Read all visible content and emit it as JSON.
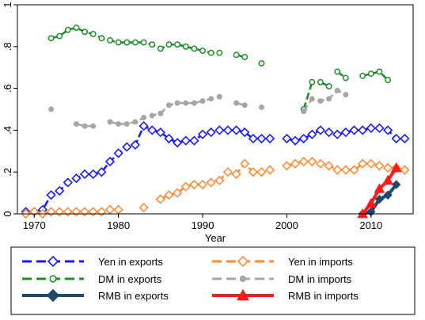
{
  "chart_data": {
    "type": "line",
    "xlabel": "Year",
    "ylabel": "",
    "xlim": [
      1968,
      2015
    ],
    "ylim": [
      0,
      1
    ],
    "x_ticks": [
      1970,
      1980,
      1990,
      2000,
      2010
    ],
    "y_ticks": [
      0,
      0.2,
      0.4,
      0.6,
      0.8,
      1
    ],
    "y_tick_labels": [
      "0",
      ".2",
      ".4",
      ".6",
      ".8",
      "1"
    ],
    "grid": false,
    "legend_position": "bottom",
    "series": [
      {
        "name": "Yen in exports",
        "color": "#1a1aff",
        "marker": "diamond-open",
        "dashed": true,
        "points": [
          [
            1969,
            0.01
          ],
          [
            1970,
            0.01
          ],
          [
            1971,
            0.02
          ],
          [
            1972,
            0.09
          ],
          [
            1973,
            0.11
          ],
          [
            1974,
            0.15
          ],
          [
            1975,
            0.17
          ],
          [
            1976,
            0.19
          ],
          [
            1977,
            0.19
          ],
          [
            1978,
            0.2
          ],
          [
            1979,
            0.25
          ],
          [
            1980,
            0.29
          ],
          [
            1981,
            0.32
          ],
          [
            1982,
            0.33
          ],
          [
            1983,
            0.42
          ],
          [
            1984,
            0.4
          ],
          [
            1985,
            0.39
          ],
          [
            1986,
            0.36
          ],
          [
            1987,
            0.34
          ],
          [
            1988,
            0.35
          ],
          [
            1989,
            0.35
          ],
          [
            1990,
            0.38
          ],
          [
            1991,
            0.39
          ],
          [
            1992,
            0.4
          ],
          [
            1993,
            0.4
          ],
          [
            1994,
            0.4
          ],
          [
            1995,
            0.39
          ],
          [
            1996,
            0.36
          ],
          [
            1997,
            0.36
          ],
          [
            1998,
            0.36
          ],
          null,
          [
            2000,
            0.36
          ],
          [
            2001,
            0.35
          ],
          [
            2002,
            0.36
          ],
          [
            2003,
            0.38
          ],
          [
            2004,
            0.4
          ],
          [
            2005,
            0.39
          ],
          [
            2006,
            0.38
          ],
          [
            2007,
            0.39
          ],
          [
            2008,
            0.4
          ],
          [
            2009,
            0.4
          ],
          [
            2010,
            0.41
          ],
          [
            2011,
            0.41
          ],
          [
            2012,
            0.4
          ],
          [
            2013,
            0.36
          ],
          [
            2014,
            0.36
          ]
        ]
      },
      {
        "name": "Yen in imports",
        "color": "#ff8c33",
        "marker": "diamond-open",
        "dashed": true,
        "points": [
          [
            1969,
            0.0
          ],
          [
            1970,
            0.01
          ],
          [
            1971,
            0.0
          ],
          [
            1972,
            0.01
          ],
          [
            1973,
            0.01
          ],
          [
            1974,
            0.01
          ],
          [
            1975,
            0.01
          ],
          [
            1976,
            0.01
          ],
          [
            1977,
            0.01
          ],
          [
            1978,
            0.01
          ],
          [
            1979,
            0.02
          ],
          [
            1980,
            0.02
          ],
          null,
          [
            1983,
            0.03
          ],
          null,
          [
            1985,
            0.07
          ],
          [
            1986,
            0.09
          ],
          [
            1987,
            0.1
          ],
          [
            1988,
            0.13
          ],
          [
            1989,
            0.14
          ],
          [
            1990,
            0.14
          ],
          [
            1991,
            0.15
          ],
          [
            1992,
            0.16
          ],
          [
            1993,
            0.2
          ],
          [
            1994,
            0.19
          ],
          [
            1995,
            0.24
          ],
          [
            1996,
            0.2
          ],
          [
            1997,
            0.2
          ],
          [
            1998,
            0.21
          ],
          null,
          [
            2000,
            0.23
          ],
          [
            2001,
            0.24
          ],
          [
            2002,
            0.25
          ],
          [
            2003,
            0.25
          ],
          [
            2004,
            0.24
          ],
          [
            2005,
            0.23
          ],
          [
            2006,
            0.21
          ],
          [
            2007,
            0.21
          ],
          [
            2008,
            0.21
          ],
          [
            2009,
            0.24
          ],
          [
            2010,
            0.24
          ],
          [
            2011,
            0.23
          ],
          [
            2012,
            0.22
          ],
          [
            2013,
            0.22
          ],
          [
            2014,
            0.21
          ]
        ]
      },
      {
        "name": "DM in exports",
        "color": "#1c8f2a",
        "marker": "circle-open",
        "dashed": true,
        "points": [
          [
            1972,
            0.84
          ],
          [
            1973,
            0.85
          ],
          [
            1974,
            0.88
          ],
          [
            1975,
            0.89
          ],
          [
            1976,
            0.87
          ],
          [
            1977,
            0.86
          ],
          [
            1978,
            0.84
          ],
          [
            1979,
            0.83
          ],
          [
            1980,
            0.82
          ],
          [
            1981,
            0.82
          ],
          [
            1982,
            0.82
          ],
          [
            1983,
            0.82
          ],
          [
            1984,
            0.81
          ],
          [
            1985,
            0.79
          ],
          [
            1986,
            0.81
          ],
          [
            1987,
            0.81
          ],
          [
            1988,
            0.8
          ],
          [
            1989,
            0.79
          ],
          [
            1990,
            0.78
          ],
          [
            1991,
            0.77
          ],
          [
            1992,
            0.77
          ],
          null,
          [
            1994,
            0.76
          ],
          [
            1995,
            0.75
          ],
          null,
          [
            1997,
            0.72
          ],
          null,
          [
            2002,
            0.5
          ],
          [
            2003,
            0.63
          ],
          null,
          [
            2004,
            0.63
          ],
          [
            2005,
            0.61
          ],
          null,
          [
            2006,
            0.68
          ],
          [
            2007,
            0.65
          ],
          null,
          [
            2009,
            0.66
          ],
          [
            2010,
            0.67
          ],
          [
            2011,
            0.68
          ],
          [
            2012,
            0.64
          ]
        ]
      },
      {
        "name": "DM in imports",
        "color": "#a6a6a6",
        "marker": "circle-filled",
        "dashed": true,
        "points": [
          [
            1972,
            0.5
          ],
          null,
          [
            1975,
            0.43
          ],
          [
            1976,
            0.42
          ],
          [
            1977,
            0.42
          ],
          null,
          [
            1979,
            0.44
          ],
          [
            1980,
            0.43
          ],
          [
            1981,
            0.43
          ],
          [
            1982,
            0.44
          ],
          [
            1983,
            0.46
          ],
          [
            1984,
            0.47
          ],
          [
            1985,
            0.48
          ],
          [
            1986,
            0.52
          ],
          [
            1987,
            0.53
          ],
          [
            1988,
            0.53
          ],
          [
            1989,
            0.53
          ],
          [
            1990,
            0.54
          ],
          [
            1991,
            0.55
          ],
          [
            1992,
            0.56
          ],
          null,
          [
            1994,
            0.53
          ],
          [
            1995,
            0.52
          ],
          null,
          [
            1997,
            0.51
          ],
          null,
          [
            2002,
            0.49
          ],
          [
            2003,
            0.55
          ],
          [
            2004,
            0.54
          ],
          [
            2005,
            0.55
          ],
          [
            2006,
            0.59
          ],
          [
            2007,
            0.57
          ]
        ]
      },
      {
        "name": "RMB in exports",
        "color": "#1f4a6b",
        "marker": "diamond-filled",
        "dashed": false,
        "points": [
          [
            2009,
            0.0
          ],
          [
            2010,
            0.01
          ],
          [
            2011,
            0.07
          ],
          [
            2012,
            0.09
          ],
          [
            2013,
            0.14
          ]
        ]
      },
      {
        "name": "RMB in imports",
        "color": "#ff1a1a",
        "marker": "triangle-filled",
        "dashed": false,
        "points": [
          [
            2009,
            0.0
          ],
          [
            2010,
            0.05
          ],
          [
            2011,
            0.12
          ],
          [
            2012,
            0.16
          ],
          [
            2013,
            0.22
          ]
        ]
      }
    ]
  }
}
